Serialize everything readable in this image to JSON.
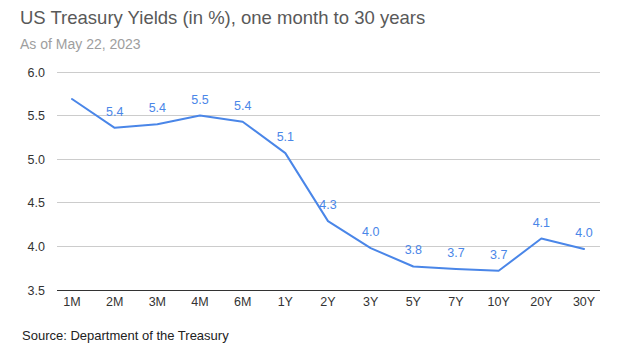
{
  "chart_data": {
    "type": "line",
    "title": "US Treasury Yields (in %), one month to 30 years",
    "subtitle": "As of May 22, 2023",
    "source": "Source: Department of the Treasury",
    "categories": [
      "1M",
      "2M",
      "3M",
      "4M",
      "6M",
      "1Y",
      "2Y",
      "3Y",
      "5Y",
      "7Y",
      "10Y",
      "20Y",
      "30Y"
    ],
    "values": [
      5.69,
      5.36,
      5.4,
      5.5,
      5.43,
      5.07,
      4.29,
      3.98,
      3.77,
      3.74,
      3.72,
      4.09,
      3.97
    ],
    "value_labels": [
      null,
      "5.4",
      "5.4",
      "5.5",
      "5.4",
      "5.1",
      "4.3",
      "4.0",
      "3.8",
      "3.7",
      "3.7",
      "4.1",
      "4.0"
    ],
    "data_labels": true,
    "color": "#4a86e8",
    "ylim": [
      3.5,
      6.0
    ],
    "yticks": [
      3.5,
      {
        "value": 4,
        "label": "4.0"
      },
      4.5,
      {
        "value": 5,
        "label": "5.0"
      },
      5.5,
      {
        "value": 6,
        "label": "6.0"
      }
    ],
    "grid": true
  }
}
